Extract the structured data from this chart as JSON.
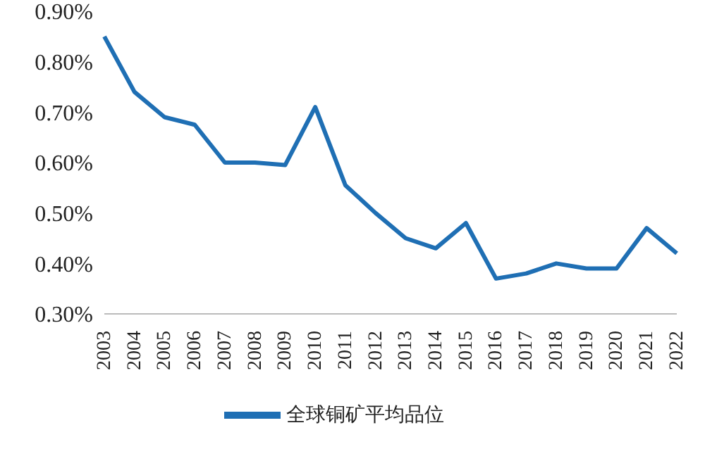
{
  "chart_data": {
    "type": "line",
    "categories": [
      "2003",
      "2004",
      "2005",
      "2006",
      "2007",
      "2008",
      "2009",
      "2010",
      "2011",
      "2012",
      "2013",
      "2014",
      "2015",
      "2016",
      "2017",
      "2018",
      "2019",
      "2020",
      "2021",
      "2022"
    ],
    "series": [
      {
        "name": "全球铜矿平均品位",
        "color": "#1f6fb4",
        "values": [
          0.85,
          0.74,
          0.69,
          0.675,
          0.6,
          0.6,
          0.595,
          0.71,
          0.555,
          0.5,
          0.45,
          0.43,
          0.48,
          0.37,
          0.38,
          0.4,
          0.39,
          0.39,
          0.47,
          0.42
        ]
      }
    ],
    "ylim": [
      0.3,
      0.9
    ],
    "yticks": [
      {
        "value": 0.3,
        "label": "0.30%"
      },
      {
        "value": 0.4,
        "label": "0.40%"
      },
      {
        "value": 0.5,
        "label": "0.50%"
      },
      {
        "value": 0.6,
        "label": "0.60%"
      },
      {
        "value": 0.7,
        "label": "0.70%"
      },
      {
        "value": 0.8,
        "label": "0.80%"
      },
      {
        "value": 0.9,
        "label": "0.90%"
      }
    ],
    "grid": false,
    "legend": "bottom",
    "marker": "none",
    "line_style": "solid"
  }
}
